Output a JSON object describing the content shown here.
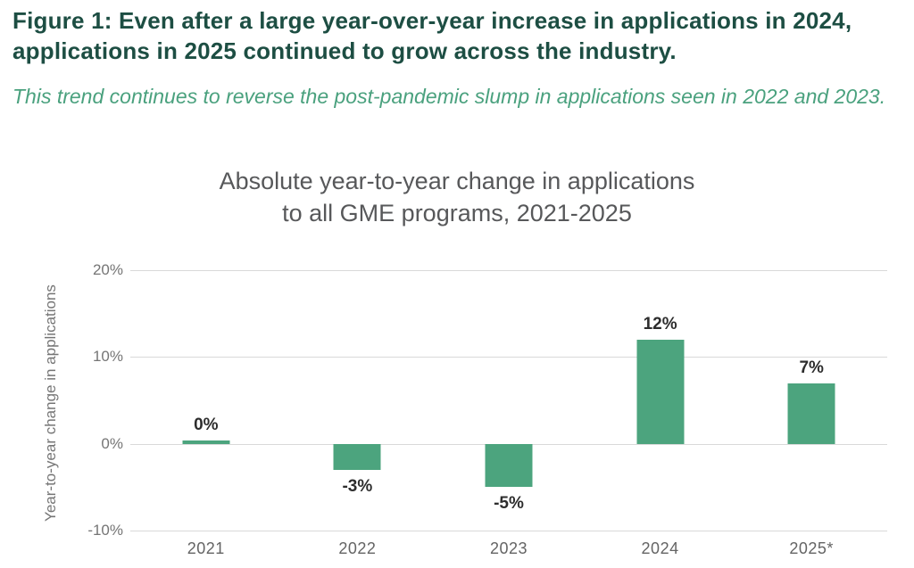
{
  "header": {
    "title": "Figure 1: Even after a large year-over-year increase in applications in 2024, applications in 2025 continued to grow across the industry.",
    "subtitle": "This trend continues to reverse the post-pandemic slump in applications seen in 2022 and 2023."
  },
  "colors": {
    "headline": "#1d4e43",
    "subtitle_green": "#4aa17e",
    "bar_green": "#4ca47e",
    "gridline": "#d9d9d9",
    "axis_text": "#757575",
    "data_label": "#2d2d2d"
  },
  "chart_data": {
    "type": "bar",
    "title": "Absolute year-to-year change in applications to all GME programs, 2021-2025",
    "title_lines": [
      "Absolute year-to-year change in applications",
      "to all GME programs, 2021-2025"
    ],
    "xlabel": "",
    "ylabel": "Year-to-year change in applications",
    "categories": [
      "2021",
      "2022",
      "2023",
      "2024",
      "2025*"
    ],
    "values": [
      0,
      -3,
      -5,
      12,
      7
    ],
    "bar_labels": [
      "0%",
      "-3%",
      "-5%",
      "12%",
      "7%"
    ],
    "ylim": [
      -10,
      20
    ],
    "yticks": [
      {
        "value": 20,
        "label": "20%"
      },
      {
        "value": 10,
        "label": "10%"
      },
      {
        "value": 0,
        "label": "0%"
      },
      {
        "value": -10,
        "label": "-10%"
      }
    ],
    "grid": "horizontal",
    "legend": "none",
    "bar_color": "#4ca47e"
  }
}
